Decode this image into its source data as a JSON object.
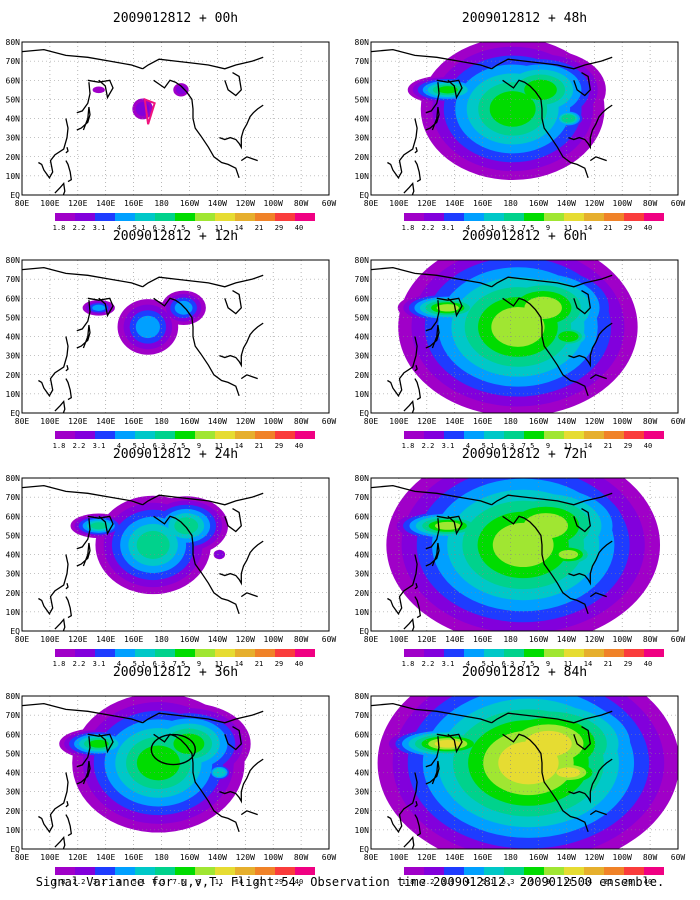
{
  "palette": {
    "levels": [
      "1.8",
      "2.2",
      "3.1",
      "4",
      "5.1",
      "6.3",
      "7.5",
      "9",
      "11",
      "14",
      "21",
      "29",
      "40"
    ],
    "colors": [
      "#a000c8",
      "#8200dc",
      "#1e3cff",
      "#00a0ff",
      "#00c8c8",
      "#00d28c",
      "#00dc00",
      "#a0e632",
      "#e6dc32",
      "#e6af2d",
      "#f08228",
      "#fa3c3c",
      "#f00082"
    ]
  },
  "lat_labels": [
    "80N",
    "70N",
    "60N",
    "50N",
    "40N",
    "30N",
    "20N",
    "10N",
    "EQ"
  ],
  "lon_labels": [
    "80E",
    "100E",
    "120E",
    "140E",
    "160E",
    "180",
    "160W",
    "140W",
    "120W",
    "100W",
    "80W",
    "60W"
  ],
  "panels": [
    {
      "title": "2009012812 + 00h",
      "intensity": 0.15,
      "target": true
    },
    {
      "title": "2009012812 + 12h",
      "intensity": 0.35,
      "target": false
    },
    {
      "title": "2009012812 + 24h",
      "intensity": 0.55,
      "target": false
    },
    {
      "title": "2009012812 + 36h",
      "intensity": 0.7,
      "target": true
    },
    {
      "title": "2009012812 + 48h",
      "intensity": 0.65,
      "target": false
    },
    {
      "title": "2009012812 + 60h",
      "intensity": 0.75,
      "target": false
    },
    {
      "title": "2009012812 + 72h",
      "intensity": 0.8,
      "target": false
    },
    {
      "title": "2009012812 + 84h",
      "intensity": 0.85,
      "target": false
    }
  ],
  "caption": "Signal Variance for u,v,T. Flight 54. Observation time 2009012812. 2009012500 ensemble."
}
